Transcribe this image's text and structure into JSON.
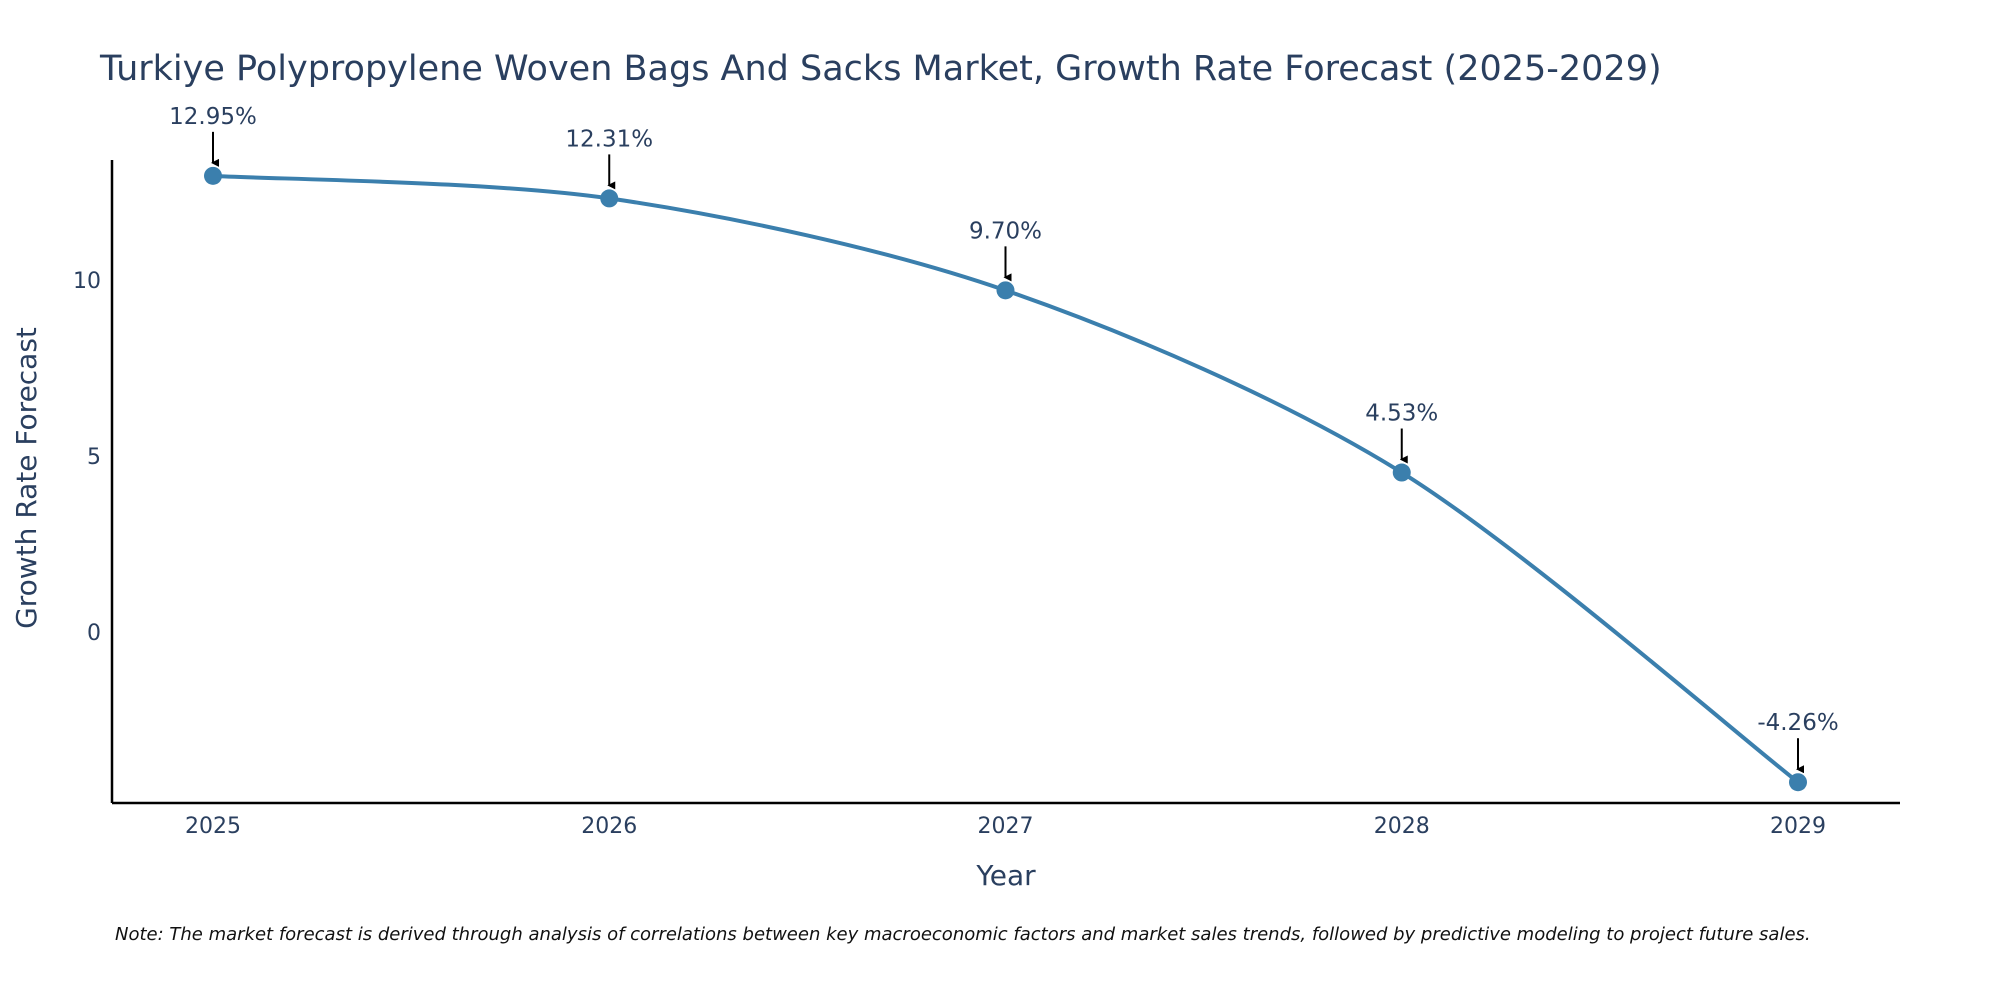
{
  "chart_data": {
    "type": "line",
    "title": "Turkiye Polypropylene Woven Bags And Sacks Market, Growth Rate Forecast (2025-2029)",
    "xlabel": "Year",
    "ylabel": "Growth Rate Forecast",
    "categories": [
      "2025",
      "2026",
      "2027",
      "2028",
      "2029"
    ],
    "values": [
      12.95,
      12.31,
      9.7,
      4.53,
      -4.26
    ],
    "data_labels": [
      "12.95%",
      "12.31%",
      "9.70%",
      "4.53%",
      "-4.26%"
    ],
    "y_ticks": [
      {
        "value": 0,
        "label": "0"
      },
      {
        "value": 5,
        "label": "5"
      },
      {
        "value": 10,
        "label": "10"
      }
    ],
    "ylim": [
      -4.85,
      13.4
    ],
    "grid": false,
    "legend": "none",
    "line_color": "#3b7fad",
    "marker_color": "#3b7fad",
    "arrow_color": "#000000",
    "note": "Note: The market forecast is derived through analysis of correlations between key macroeconomic factors and market sales trends, followed by predictive modeling to project future sales."
  }
}
